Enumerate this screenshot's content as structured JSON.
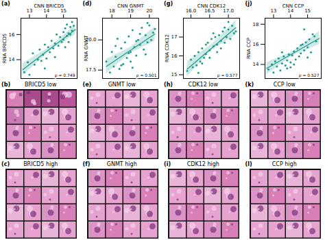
{
  "chart_data": [
    {
      "type": "scatter",
      "panel": "(a)",
      "x_label": "CNN BRICD5",
      "y_label": "RNA BRICD5",
      "annotation": "ρ = 0.749",
      "color": "#1b9a8c",
      "xlim": [
        12.5,
        15.8
      ],
      "ylim": [
        12.5,
        17.3
      ],
      "xticks": [
        13,
        14,
        15
      ],
      "yticks": [
        14,
        16
      ],
      "x": [
        12.7,
        12.9,
        13.0,
        13.2,
        13.3,
        13.5,
        13.6,
        13.7,
        13.8,
        13.9,
        14.0,
        14.1,
        14.2,
        14.3,
        14.4,
        14.5,
        14.6,
        14.7,
        14.8,
        14.9,
        15.0,
        15.0,
        15.1,
        15.2,
        15.2,
        15.3,
        15.3,
        15.4,
        15.4,
        15.5,
        15.5,
        15.6,
        14.5,
        13.9,
        15.1
      ],
      "y": [
        13.0,
        13.8,
        12.8,
        14.5,
        13.6,
        14.0,
        14.8,
        13.9,
        14.4,
        15.2,
        14.1,
        15.0,
        14.6,
        15.5,
        14.9,
        15.3,
        16.0,
        15.1,
        15.8,
        15.4,
        16.2,
        15.6,
        16.5,
        15.9,
        16.8,
        16.1,
        15.4,
        16.6,
        16.0,
        17.0,
        16.3,
        16.7,
        14.2,
        13.3,
        15.0
      ],
      "fit": {
        "x": [
          12.6,
          15.7
        ],
        "y": [
          13.2,
          16.4
        ]
      },
      "fit_band": {
        "x": [
          12.6,
          14.2,
          15.7
        ],
        "lower": [
          12.7,
          14.7,
          16.0
        ],
        "upper": [
          13.7,
          15.0,
          16.8
        ]
      }
    },
    {
      "type": "scatter",
      "panel": "(d)",
      "x_label": "CNN GNMT",
      "y_label": "RNA GNMT",
      "annotation": "ρ = 0.501",
      "color": "#1b9a8c",
      "xlim": [
        17.5,
        20.5
      ],
      "ylim": [
        16.8,
        21.8
      ],
      "xticks": [
        18,
        19,
        20
      ],
      "yticks": [
        17.5,
        {
          "value": 20,
          "label": "20.0"
        }
      ],
      "x": [
        17.7,
        17.9,
        18.0,
        18.1,
        18.2,
        18.3,
        18.4,
        18.5,
        18.6,
        18.7,
        18.8,
        18.9,
        19.0,
        19.0,
        19.1,
        19.2,
        19.3,
        19.4,
        19.5,
        19.6,
        19.7,
        19.8,
        19.9,
        20.0,
        20.1,
        20.2,
        18.5,
        19.3,
        19.8,
        18.9,
        19.5,
        20.3,
        18.2,
        19.1,
        19.9
      ],
      "y": [
        18.2,
        17.3,
        19.0,
        17.8,
        18.6,
        20.1,
        17.6,
        19.3,
        18.0,
        19.8,
        18.5,
        20.3,
        19.0,
        18.2,
        20.8,
        19.4,
        18.7,
        20.0,
        19.6,
        21.0,
        19.2,
        20.4,
        19.8,
        21.2,
        20.0,
        20.6,
        17.9,
        19.9,
        18.8,
        18.9,
        20.5,
        20.9,
        19.5,
        17.7,
        21.4
      ],
      "fit": {
        "x": [
          17.7,
          20.3
        ],
        "y": [
          17.8,
          20.5
        ]
      },
      "fit_band": {
        "x": [
          17.7,
          19.0,
          20.3
        ],
        "lower": [
          17.2,
          18.9,
          19.9
        ],
        "upper": [
          18.4,
          19.4,
          21.1
        ]
      }
    },
    {
      "type": "scatter",
      "panel": "(g)",
      "x_label": "CNN CDK12",
      "y_label": "RNA CDK12",
      "annotation": "ρ = 0.577",
      "color": "#1b9a8c",
      "xlim": [
        15.8,
        17.3
      ],
      "ylim": [
        14.8,
        18.0
      ],
      "xticks": [
        {
          "value": 16,
          "label": "16.0"
        },
        16.5,
        {
          "value": 17,
          "label": "17.0"
        }
      ],
      "yticks": [
        15,
        16,
        17
      ],
      "x": [
        15.9,
        16.0,
        16.05,
        16.1,
        16.15,
        16.2,
        16.25,
        16.3,
        16.35,
        16.4,
        16.45,
        16.5,
        16.5,
        16.55,
        16.6,
        16.65,
        16.7,
        16.7,
        16.75,
        16.8,
        16.85,
        16.9,
        16.9,
        16.95,
        17.0,
        17.05,
        17.1,
        17.15,
        16.3,
        16.6,
        16.8,
        17.0,
        16.4,
        16.2,
        17.2
      ],
      "y": [
        15.2,
        15.8,
        15.4,
        16.0,
        15.5,
        16.2,
        15.7,
        16.4,
        15.9,
        16.1,
        16.7,
        16.3,
        15.9,
        16.9,
        16.5,
        17.0,
        16.6,
        16.2,
        17.1,
        16.8,
        17.3,
        16.7,
        17.5,
        17.0,
        17.4,
        16.9,
        17.6,
        17.2,
        15.6,
        17.2,
        16.4,
        17.8,
        16.6,
        15.1,
        17.3
      ],
      "fit": {
        "x": [
          15.9,
          17.2
        ],
        "y": [
          15.3,
          17.5
        ]
      },
      "fit_band": {
        "x": [
          15.9,
          16.55,
          17.2
        ],
        "lower": [
          14.9,
          16.3,
          17.1
        ],
        "upper": [
          15.7,
          16.6,
          17.9
        ]
      }
    },
    {
      "type": "scatter",
      "panel": "(j)",
      "x_label": "CNN CCP",
      "y_label": "RNA CCP",
      "annotation": "ρ = 0.527",
      "color": "#1b9a8c",
      "xlim": [
        12.5,
        15.8
      ],
      "ylim": [
        12.6,
        18.6
      ],
      "xticks": [
        13,
        14,
        15
      ],
      "yticks": [
        14,
        16,
        18
      ],
      "x": [
        12.7,
        12.9,
        13.0,
        13.1,
        13.2,
        13.3,
        13.4,
        13.5,
        13.6,
        13.7,
        13.8,
        13.9,
        14.0,
        14.0,
        14.1,
        14.2,
        14.3,
        14.4,
        14.5,
        14.6,
        14.7,
        14.8,
        14.9,
        15.0,
        15.1,
        15.2,
        15.3,
        15.4,
        13.5,
        14.2,
        14.8,
        15.5,
        13.8,
        14.6,
        15.0
      ],
      "y": [
        13.5,
        14.0,
        13.2,
        14.3,
        13.8,
        14.6,
        13.4,
        14.1,
        14.8,
        13.9,
        14.4,
        15.0,
        14.2,
        13.7,
        14.9,
        15.3,
        14.5,
        15.6,
        14.8,
        15.1,
        16.0,
        15.4,
        16.2,
        15.7,
        16.5,
        15.2,
        17.0,
        16.8,
        15.2,
        14.0,
        17.5,
        16.3,
        13.6,
        15.9,
        14.7
      ],
      "fit": {
        "x": [
          12.6,
          15.7
        ],
        "y": [
          13.6,
          16.6
        ]
      },
      "fit_band": {
        "x": [
          12.6,
          14.15,
          15.7
        ],
        "lower": [
          13.0,
          14.9,
          16.0
        ],
        "upper": [
          14.2,
          15.3,
          17.3
        ]
      }
    }
  ],
  "image_panels": [
    [
      {
        "panel": "(b)",
        "title": "BRICD5 low"
      },
      {
        "panel": "(e)",
        "title": "GNMT low"
      },
      {
        "panel": "(h)",
        "title": "CDK12 low"
      },
      {
        "panel": "(k)",
        "title": "CCP low"
      }
    ],
    [
      {
        "panel": "(c)",
        "title": "BRICD5 high"
      },
      {
        "panel": "(f)",
        "title": "GNMT high"
      },
      {
        "panel": "(i)",
        "title": "CDK12 high"
      },
      {
        "panel": "(l)",
        "title": "CCP high"
      }
    ]
  ]
}
